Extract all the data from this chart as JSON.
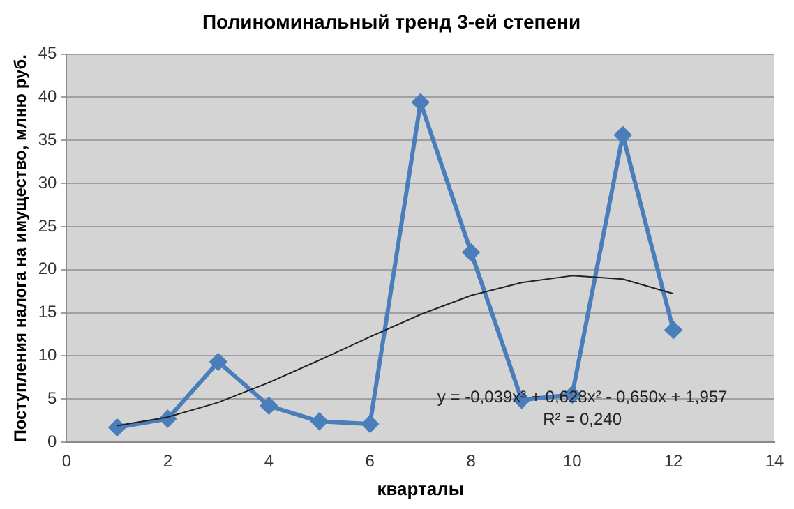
{
  "chart_data": {
    "type": "line",
    "title": "Полиноминальный тренд 3-ей степени",
    "xlabel": "кварталы",
    "ylabel": "Поступления налога на имущество, млню руб.",
    "x": [
      1,
      2,
      3,
      4,
      5,
      6,
      7,
      8,
      9,
      10,
      11,
      12
    ],
    "series": [
      {
        "color": "#4a7ebb",
        "values": [
          1.7,
          2.7,
          9.3,
          4.2,
          2.4,
          2.1,
          39.4,
          22,
          4.9,
          5.5,
          35.6,
          13
        ]
      },
      {
        "color": "#222222",
        "marker": "none",
        "values": [
          1.9,
          2.9,
          4.6,
          6.9,
          9.5,
          12.2,
          14.8,
          17,
          18.5,
          19.3,
          18.9,
          17.2
        ]
      }
    ],
    "annotations": [
      "y = -0,039x³ + 0,628x² - 0,650x + 1,957",
      "R² = 0,240"
    ],
    "xlim": [
      0,
      14
    ],
    "xticks": [
      0,
      2,
      4,
      6,
      8,
      10,
      12,
      14
    ],
    "ylim": [
      0,
      45
    ],
    "yticks": [
      0,
      5,
      10,
      15,
      20,
      25,
      30,
      35,
      40,
      45
    ],
    "grid": "y",
    "legend": false,
    "marker": "diamond",
    "line_style": "solid"
  }
}
